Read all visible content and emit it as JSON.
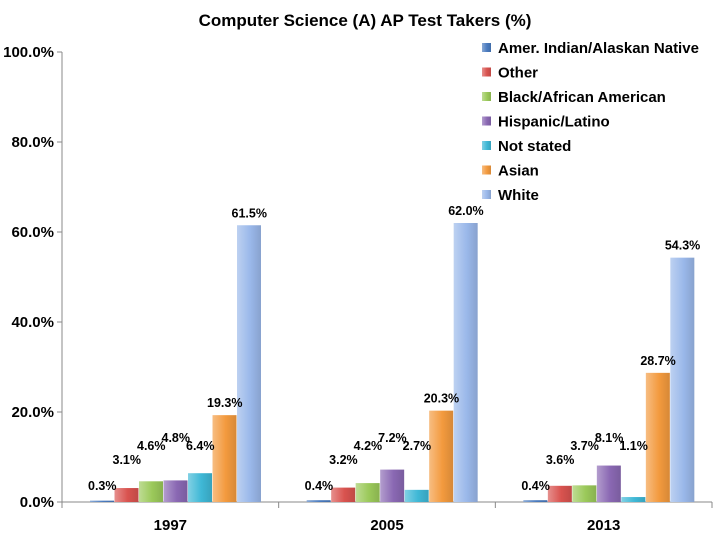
{
  "chart_data": {
    "type": "bar",
    "title": "Computer Science (A) AP Test Takers (%)",
    "xlabel": "",
    "ylabel": "",
    "categories": [
      "1997",
      "2005",
      "2013"
    ],
    "ylim": [
      0,
      100
    ],
    "yticks": [
      "0.0%",
      "20.0%",
      "40.0%",
      "60.0%",
      "80.0%",
      "100.0%"
    ],
    "legend_position": "top-right",
    "series": [
      {
        "name": "Amer. Indian/Alaskan Native",
        "color": "#4a7bbf",
        "values": [
          0.3,
          0.4,
          0.4
        ],
        "labels": [
          "0.3%",
          "0.4%",
          "0.4%"
        ]
      },
      {
        "name": "Other",
        "color": "#d9534f",
        "values": [
          3.1,
          3.2,
          3.6
        ],
        "labels": [
          "3.1%",
          "3.2%",
          "3.6%"
        ]
      },
      {
        "name": "Black/African American",
        "color": "#9bc95a",
        "values": [
          4.6,
          4.2,
          3.7
        ],
        "labels": [
          "4.6%",
          "4.2%",
          "3.7%"
        ]
      },
      {
        "name": "Hispanic/Latino",
        "color": "#8a68b3",
        "values": [
          4.8,
          7.2,
          8.1
        ],
        "labels": [
          "4.8%",
          "7.2%",
          "8.1%"
        ]
      },
      {
        "name": "Not stated",
        "color": "#3fb8d6",
        "values": [
          6.4,
          2.7,
          1.1
        ],
        "labels": [
          "6.4%",
          "2.7%",
          "1.1%"
        ]
      },
      {
        "name": "Asian",
        "color": "#f39a3e",
        "values": [
          19.3,
          20.3,
          28.7
        ],
        "labels": [
          "19.3%",
          "20.3%",
          "28.7%"
        ]
      },
      {
        "name": "White",
        "color": "#9ab8ea",
        "values": [
          61.5,
          62.0,
          54.3
        ],
        "labels": [
          "61.5%",
          "62.0%",
          "54.3%"
        ]
      }
    ]
  }
}
